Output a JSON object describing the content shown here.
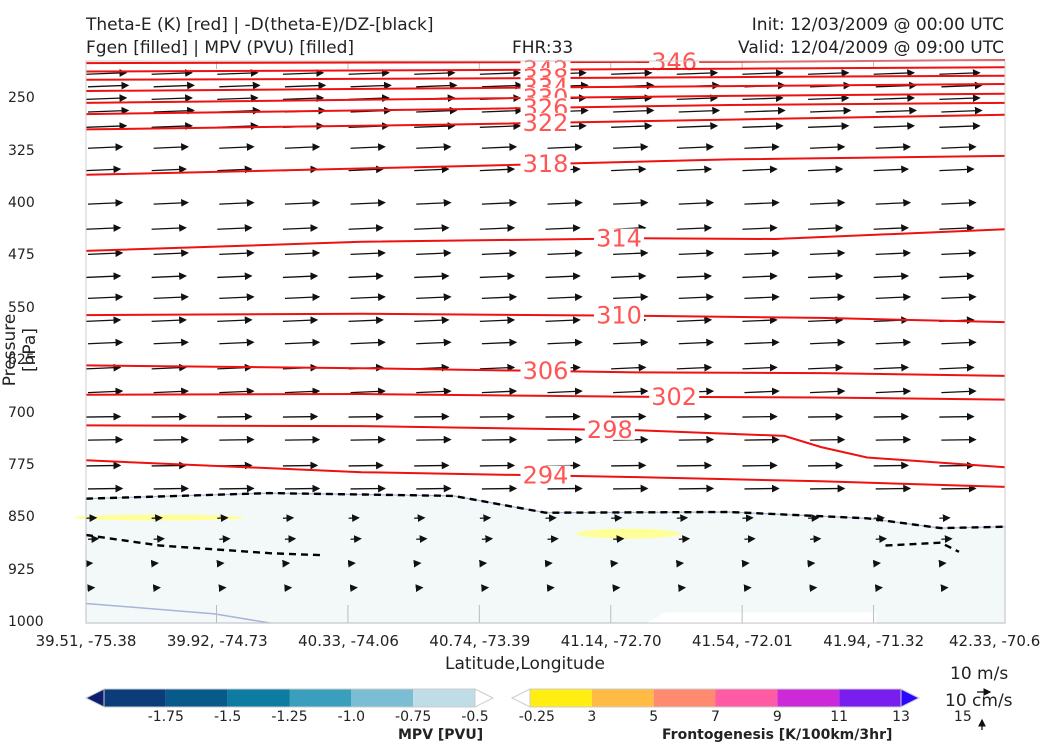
{
  "header": {
    "title_left_1": "Theta-E (K) [red] | -D(theta-E)/DZ-[black]",
    "title_left_2": "Fgen [filled] | MPV (PVU) [filled]",
    "fhr": "FHR:33",
    "init": "Init: 12/03/2009 @ 00:00 UTC",
    "valid": "Valid: 12/04/2009 @ 09:00 UTC"
  },
  "chart_data": {
    "type": "cross-section",
    "xlabel": "Latitude,Longitude",
    "ylabel": "Pressure [hPa]",
    "x_ticks": [
      "39.51, -75.38",
      "39.92, -74.73",
      "40.33, -74.06",
      "40.74, -73.39",
      "41.14, -72.70",
      "41.54, -72.01",
      "41.94, -71.32",
      "42.33, -70.6"
    ],
    "y_ticks": [
      250,
      325,
      400,
      475,
      550,
      625,
      700,
      775,
      850,
      925,
      1000
    ],
    "ylim": [
      1000,
      195
    ],
    "theta_e_contours": [
      {
        "label": "346",
        "label_x": 0.64,
        "points": [
          [
            0,
            198
          ],
          [
            0.4,
            197
          ],
          [
            0.7,
            196
          ],
          [
            1,
            194
          ]
        ]
      },
      {
        "label": "342",
        "label_x": 0.5,
        "points": [
          [
            0,
            210
          ],
          [
            0.4,
            208
          ],
          [
            0.7,
            206
          ],
          [
            1,
            204
          ]
        ]
      },
      {
        "label": "338",
        "label_x": 0.5,
        "points": [
          [
            0,
            222
          ],
          [
            0.4,
            220
          ],
          [
            0.7,
            218
          ],
          [
            1,
            216
          ]
        ]
      },
      {
        "label": "334",
        "label_x": 0.5,
        "points": [
          [
            0,
            238
          ],
          [
            0.4,
            234
          ],
          [
            0.7,
            231
          ],
          [
            1,
            228
          ]
        ]
      },
      {
        "label": "330",
        "label_x": 0.5,
        "points": [
          [
            0,
            255
          ],
          [
            0.4,
            249
          ],
          [
            0.7,
            245
          ],
          [
            1,
            242
          ]
        ]
      },
      {
        "label": "326",
        "label_x": 0.5,
        "points": [
          [
            0,
            271
          ],
          [
            0.4,
            264
          ],
          [
            0.7,
            258
          ],
          [
            1,
            255
          ]
        ]
      },
      {
        "label": "322",
        "label_x": 0.5,
        "points": [
          [
            0,
            293
          ],
          [
            0.4,
            286
          ],
          [
            0.7,
            279
          ],
          [
            1,
            272
          ]
        ]
      },
      {
        "label": "318",
        "label_x": 0.5,
        "points": [
          [
            0,
            358
          ],
          [
            0.4,
            346
          ],
          [
            0.7,
            336
          ],
          [
            1,
            331
          ]
        ]
      },
      {
        "label": "314",
        "label_x": 0.58,
        "points": [
          [
            0,
            467
          ],
          [
            0.3,
            454
          ],
          [
            0.6,
            449
          ],
          [
            0.75,
            450
          ],
          [
            1,
            436
          ]
        ]
      },
      {
        "label": "310",
        "label_x": 0.58,
        "points": [
          [
            0,
            559
          ],
          [
            0.3,
            557
          ],
          [
            0.6,
            560
          ],
          [
            0.8,
            563
          ],
          [
            1,
            569
          ]
        ]
      },
      {
        "label": "306",
        "label_x": 0.5,
        "points": [
          [
            0,
            631
          ],
          [
            0.3,
            635
          ],
          [
            0.6,
            641
          ],
          [
            0.8,
            642
          ],
          [
            1,
            646
          ]
        ]
      },
      {
        "label": "302",
        "label_x": 0.64,
        "points": [
          [
            0,
            673
          ],
          [
            0.3,
            672
          ],
          [
            0.6,
            676
          ],
          [
            0.8,
            677
          ],
          [
            1,
            680
          ]
        ]
      },
      {
        "label": "298",
        "label_x": 0.57,
        "points": [
          [
            0,
            717
          ],
          [
            0.3,
            718
          ],
          [
            0.6,
            724
          ],
          [
            0.76,
            732
          ],
          [
            0.8,
            748
          ],
          [
            0.85,
            763
          ],
          [
            1,
            777
          ]
        ]
      },
      {
        "label": "294",
        "label_x": 0.5,
        "points": [
          [
            0,
            767
          ],
          [
            0.3,
            784
          ],
          [
            0.6,
            791
          ],
          [
            0.8,
            797
          ],
          [
            1,
            805
          ]
        ]
      }
    ],
    "dz_contours": [
      {
        "points": [
          [
            0,
            822
          ],
          [
            0.2,
            814
          ],
          [
            0.4,
            818
          ],
          [
            0.5,
            842
          ],
          [
            0.7,
            841
          ],
          [
            0.85,
            850
          ],
          [
            0.93,
            864
          ],
          [
            1,
            862
          ]
        ]
      },
      {
        "points": [
          [
            0,
            874
          ],
          [
            0.08,
            889
          ],
          [
            0.2,
            900
          ],
          [
            0.26,
            903
          ]
        ]
      },
      {
        "points": [
          [
            0.87,
            889
          ],
          [
            0.93,
            885
          ],
          [
            0.95,
            898
          ]
        ]
      }
    ],
    "mpv_fill_levels": [
      -1.75,
      -1.5,
      -1.25,
      -1.0,
      -0.75,
      -0.5,
      -0.25
    ],
    "fgen_fill_levels": [
      3,
      5,
      7,
      9,
      11,
      13,
      15
    ],
    "colorbar_mpv": {
      "title": "MPV [PVU]",
      "ticks": [
        "-1.75",
        "-1.5",
        "-1.25",
        "-1.0",
        "-0.75",
        "-0.5",
        "-0.25"
      ],
      "colors": [
        "#0b1f6e",
        "#0a3d7a",
        "#075a8a",
        "#0d7ca0",
        "#3a9ebd",
        "#7bbdd2",
        "#bfdde6",
        "#ffffff"
      ]
    },
    "colorbar_fgen": {
      "title": "Frontogenesis [K/100km/3hr]",
      "ticks": [
        "3",
        "5",
        "7",
        "9",
        "11",
        "13",
        "15"
      ],
      "colors": [
        "#ffffff",
        "#ffee10",
        "#ffbb44",
        "#ff8a70",
        "#ff5aa4",
        "#cc2ad8",
        "#7a1ef0",
        "#2a08ff"
      ]
    },
    "vector_scale": {
      "horizontal": "10 m/s",
      "vertical": "10 cm/s"
    },
    "colors": {
      "theta_e": "#ee1111",
      "theta_e_label": "#ff5555",
      "dz": "#000000",
      "mpv_fill": "#f3f9f9",
      "fgen_fill": "#ffff99"
    }
  }
}
